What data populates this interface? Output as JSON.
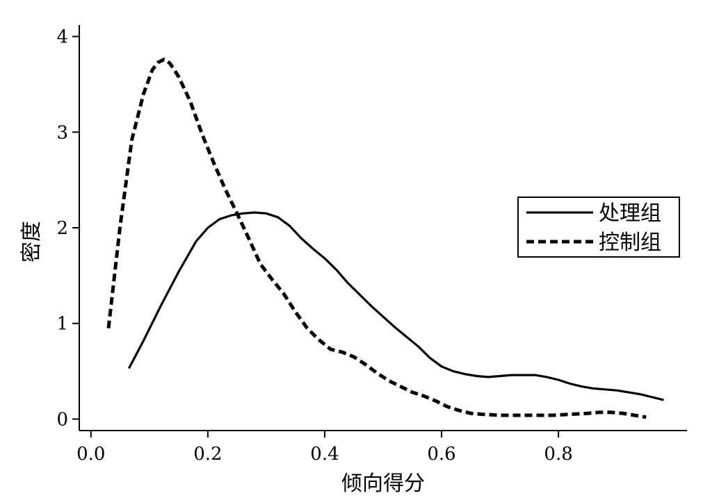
{
  "chart_data": {
    "type": "line",
    "title": "",
    "xlabel": "倾向得分",
    "ylabel": "密度",
    "xlim": [
      -0.02,
      1.02
    ],
    "ylim": [
      -0.12,
      4.12
    ],
    "x_ticks": [
      0.0,
      0.2,
      0.4,
      0.6,
      0.8
    ],
    "x_tick_labels": [
      "0.0",
      "0.2",
      "0.4",
      "0.6",
      "0.8"
    ],
    "y_ticks": [
      0,
      1,
      2,
      3,
      4
    ],
    "y_tick_labels": [
      "0",
      "1",
      "2",
      "3",
      "4"
    ],
    "grid": false,
    "legend": "right",
    "series": [
      {
        "name": "处理组",
        "style": "solid",
        "color": "#000000",
        "points": [
          [
            0.065,
            0.53
          ],
          [
            0.09,
            0.82
          ],
          [
            0.12,
            1.19
          ],
          [
            0.15,
            1.54
          ],
          [
            0.18,
            1.86
          ],
          [
            0.2,
            2.0
          ],
          [
            0.22,
            2.09
          ],
          [
            0.24,
            2.13
          ],
          [
            0.26,
            2.15
          ],
          [
            0.28,
            2.16
          ],
          [
            0.3,
            2.15
          ],
          [
            0.32,
            2.11
          ],
          [
            0.34,
            2.02
          ],
          [
            0.36,
            1.89
          ],
          [
            0.38,
            1.78
          ],
          [
            0.4,
            1.68
          ],
          [
            0.42,
            1.56
          ],
          [
            0.44,
            1.42
          ],
          [
            0.46,
            1.3
          ],
          [
            0.48,
            1.18
          ],
          [
            0.5,
            1.07
          ],
          [
            0.52,
            0.96
          ],
          [
            0.54,
            0.86
          ],
          [
            0.56,
            0.76
          ],
          [
            0.58,
            0.64
          ],
          [
            0.6,
            0.55
          ],
          [
            0.62,
            0.5
          ],
          [
            0.64,
            0.47
          ],
          [
            0.66,
            0.45
          ],
          [
            0.68,
            0.44
          ],
          [
            0.7,
            0.45
          ],
          [
            0.72,
            0.46
          ],
          [
            0.74,
            0.46
          ],
          [
            0.76,
            0.46
          ],
          [
            0.78,
            0.44
          ],
          [
            0.8,
            0.41
          ],
          [
            0.82,
            0.37
          ],
          [
            0.84,
            0.34
          ],
          [
            0.86,
            0.32
          ],
          [
            0.88,
            0.31
          ],
          [
            0.9,
            0.3
          ],
          [
            0.92,
            0.28
          ],
          [
            0.94,
            0.26
          ],
          [
            0.96,
            0.23
          ],
          [
            0.98,
            0.2
          ]
        ]
      },
      {
        "name": "控制组",
        "style": "dashed",
        "color": "#000000",
        "points": [
          [
            0.03,
            0.95
          ],
          [
            0.05,
            2.02
          ],
          [
            0.07,
            2.92
          ],
          [
            0.09,
            3.4
          ],
          [
            0.105,
            3.65
          ],
          [
            0.115,
            3.73
          ],
          [
            0.125,
            3.76
          ],
          [
            0.135,
            3.72
          ],
          [
            0.15,
            3.58
          ],
          [
            0.17,
            3.32
          ],
          [
            0.19,
            2.98
          ],
          [
            0.21,
            2.68
          ],
          [
            0.23,
            2.4
          ],
          [
            0.25,
            2.15
          ],
          [
            0.27,
            1.89
          ],
          [
            0.29,
            1.62
          ],
          [
            0.31,
            1.46
          ],
          [
            0.33,
            1.31
          ],
          [
            0.35,
            1.12
          ],
          [
            0.37,
            0.95
          ],
          [
            0.39,
            0.83
          ],
          [
            0.41,
            0.73
          ],
          [
            0.43,
            0.7
          ],
          [
            0.45,
            0.65
          ],
          [
            0.47,
            0.57
          ],
          [
            0.49,
            0.48
          ],
          [
            0.51,
            0.4
          ],
          [
            0.53,
            0.34
          ],
          [
            0.55,
            0.28
          ],
          [
            0.57,
            0.24
          ],
          [
            0.59,
            0.19
          ],
          [
            0.61,
            0.13
          ],
          [
            0.63,
            0.09
          ],
          [
            0.65,
            0.06
          ],
          [
            0.67,
            0.05
          ],
          [
            0.7,
            0.04
          ],
          [
            0.73,
            0.04
          ],
          [
            0.76,
            0.04
          ],
          [
            0.79,
            0.04
          ],
          [
            0.82,
            0.05
          ],
          [
            0.85,
            0.06
          ],
          [
            0.87,
            0.07
          ],
          [
            0.89,
            0.07
          ],
          [
            0.91,
            0.06
          ],
          [
            0.93,
            0.04
          ],
          [
            0.95,
            0.02
          ]
        ]
      }
    ]
  }
}
